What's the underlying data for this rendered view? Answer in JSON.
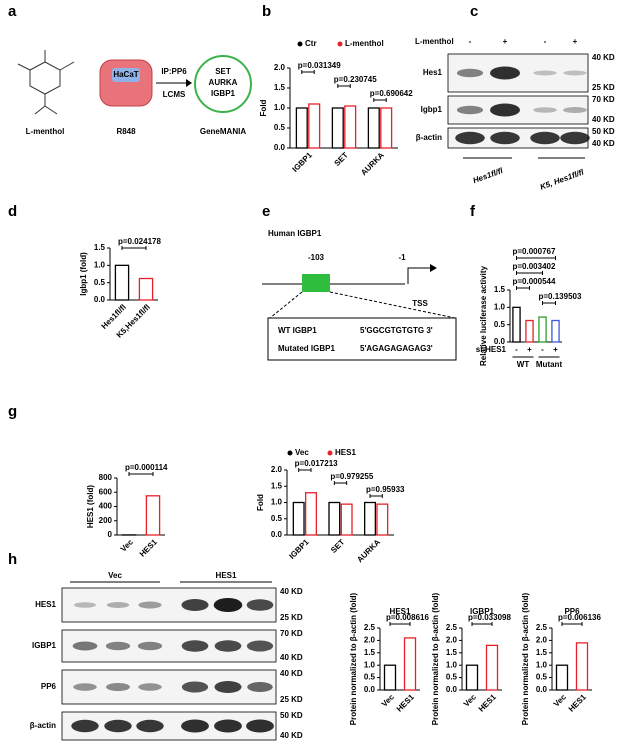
{
  "panel_labels": [
    "a",
    "b",
    "c",
    "d",
    "e",
    "f",
    "g",
    "h"
  ],
  "diagram_a": {
    "compound": "L-menthol",
    "cell": "HaCaT",
    "treatment": "R848",
    "method_1": "IP:PP6",
    "method_2": "LCMS",
    "hits": [
      "SET",
      "AURKA",
      "IGBP1"
    ],
    "tool": "GeneMANIA"
  },
  "blot_c": {
    "treatment_label": "L-menthol",
    "lanes": [
      "-",
      "+",
      "-",
      "+"
    ],
    "rows": [
      {
        "name": "Hes1",
        "markers": [
          "40 KD",
          "25 KD"
        ]
      },
      {
        "name": "Igbp1",
        "markers": [
          "70 KD",
          "40 KD"
        ]
      },
      {
        "name": "β-actin",
        "markers": [
          "50 KD",
          "40 KD"
        ]
      }
    ],
    "groups": [
      "Hes1fl/fl",
      "K5, Hes1fl/fl"
    ]
  },
  "promoter_e": {
    "title": "Human IGBP1",
    "position_1": "-103",
    "position_2": "-1",
    "tss": "TSS",
    "wt_label": "WT IGBP1",
    "wt_seq": "5'GGCGTGTGTG 3'",
    "mut_label": "Mutated IGBP1",
    "mut_seq": "5'AGAGAGAGAG3'"
  },
  "blot_h": {
    "groups": [
      "Vec",
      "HES1"
    ],
    "rows": [
      {
        "name": "HES1",
        "markers": [
          "40 KD",
          "25 KD"
        ]
      },
      {
        "name": "IGBP1",
        "markers": [
          "70 KD",
          "40 KD"
        ]
      },
      {
        "name": "PP6",
        "markers": [
          "40 KD",
          "25 KD"
        ]
      },
      {
        "name": "β-actin",
        "markers": [
          "50 KD",
          "40 KD"
        ]
      }
    ]
  },
  "chart_data": [
    {
      "type": "bar",
      "ylabel": "Fold",
      "ylim": [
        0,
        2
      ],
      "yticks": [
        {
          "value": 0,
          "label": "0.0"
        },
        {
          "value": 0.5,
          "label": "0.5"
        },
        {
          "value": 1,
          "label": "1.0"
        },
        {
          "value": 1.5,
          "label": "1.5"
        },
        {
          "value": 2,
          "label": "2.0"
        }
      ],
      "categories": [
        "IGBP1",
        "SET",
        "AURKA"
      ],
      "series": [
        {
          "name": "Ctr",
          "color": "#000000",
          "values": [
            1.0,
            1.0,
            1.0
          ]
        },
        {
          "name": "L-menthol",
          "color": "#e8202a",
          "values": [
            1.1,
            1.05,
            1.0
          ]
        }
      ],
      "annotations": [
        "p=0.031349",
        "p=0.230745",
        "p=0.690642"
      ]
    },
    {
      "type": "bar",
      "ylabel": "Igbp1 (fold)",
      "ylim": [
        0,
        1.5
      ],
      "yticks": [
        {
          "value": 0,
          "label": "0.0"
        },
        {
          "value": 0.5,
          "label": "0.5"
        },
        {
          "value": 1,
          "label": "1.0"
        },
        {
          "value": 1.5,
          "label": "1.5"
        }
      ],
      "categories": [
        "Hes1fl/fl",
        "K5,Hes1fl/fl"
      ],
      "values": [
        1.0,
        0.62
      ],
      "colors": [
        "#000000",
        "#e8202a"
      ],
      "annotations": [
        "p=0.024178"
      ]
    },
    {
      "type": "bar",
      "ylabel": "Relative luciferase activity",
      "ylim": [
        0,
        1.5
      ],
      "yticks": [
        {
          "value": 0,
          "label": "0.0"
        },
        {
          "value": 0.5,
          "label": "0.5"
        },
        {
          "value": 1,
          "label": "1.0"
        },
        {
          "value": 1.5,
          "label": "1.5"
        }
      ],
      "categories": [
        "-",
        "+",
        "-",
        "+"
      ],
      "values": [
        1.0,
        0.62,
        0.72,
        0.62
      ],
      "colors": [
        "#000000",
        "#e8202a",
        "#2ca02c",
        "#3b5bdb"
      ],
      "row_label": "si-HES1",
      "groups": [
        "WT",
        "Mutant"
      ],
      "annotations": [
        "p=0.000767",
        "p=0.003402",
        "p=0.000544",
        "p=0.139503"
      ]
    },
    {
      "type": "bar",
      "ylabel": "HES1 (fold)",
      "ylim": [
        0,
        800
      ],
      "yticks": [
        0,
        200,
        400,
        600,
        800
      ],
      "categories": [
        "Vec",
        "HES1"
      ],
      "values": [
        1,
        550
      ],
      "colors": [
        "#000000",
        "#e8202a"
      ],
      "annotations": [
        "p=0.000114"
      ]
    },
    {
      "type": "bar",
      "ylabel": "Fold",
      "ylim": [
        0,
        2
      ],
      "yticks": [
        {
          "value": 0,
          "label": "0.0"
        },
        {
          "value": 0.5,
          "label": "0.5"
        },
        {
          "value": 1,
          "label": "1.0"
        },
        {
          "value": 1.5,
          "label": "1.5"
        },
        {
          "value": 2,
          "label": "2.0"
        }
      ],
      "categories": [
        "IGBP1",
        "SET",
        "AURKA"
      ],
      "series": [
        {
          "name": "Vec",
          "color": "#000000",
          "values": [
            1.0,
            1.0,
            1.0
          ]
        },
        {
          "name": "HES1",
          "color": "#e8202a",
          "values": [
            1.3,
            0.95,
            0.95
          ]
        }
      ],
      "annotations": [
        "p=0.017213",
        "p=0.979255",
        "p=0.95933"
      ]
    },
    {
      "type": "bar",
      "title": "HES1",
      "ylabel": "Protein normalized to β-actin (fold)",
      "ylim": [
        0,
        2.5
      ],
      "yticks": [
        {
          "value": 0,
          "label": "0.0"
        },
        {
          "value": 0.5,
          "label": "0.5"
        },
        {
          "value": 1,
          "label": "1.0"
        },
        {
          "value": 1.5,
          "label": "1.5"
        },
        {
          "value": 2,
          "label": "2.0"
        },
        {
          "value": 2.5,
          "label": "2.5"
        }
      ],
      "categories": [
        "Vec",
        "HES1"
      ],
      "values": [
        1.0,
        2.1
      ],
      "colors": [
        "#000000",
        "#e8202a"
      ],
      "annotations": [
        "p=0.008616"
      ]
    },
    {
      "type": "bar",
      "title": "IGBP1",
      "ylabel": "Protein normalized to β-actin (fold)",
      "ylim": [
        0,
        2.5
      ],
      "yticks": [
        {
          "value": 0,
          "label": "0.0"
        },
        {
          "value": 0.5,
          "label": "0.5"
        },
        {
          "value": 1,
          "label": "1.0"
        },
        {
          "value": 1.5,
          "label": "1.5"
        },
        {
          "value": 2,
          "label": "2.0"
        },
        {
          "value": 2.5,
          "label": "2.5"
        }
      ],
      "categories": [
        "Vec",
        "HES1"
      ],
      "values": [
        1.0,
        1.8
      ],
      "colors": [
        "#000000",
        "#e8202a"
      ],
      "annotations": [
        "p=0.033098"
      ]
    },
    {
      "type": "bar",
      "title": "PP6",
      "ylabel": "Protein normalized to β-actin (fold)",
      "ylim": [
        0,
        2.5
      ],
      "yticks": [
        {
          "value": 0,
          "label": "0.0"
        },
        {
          "value": 0.5,
          "label": "0.5"
        },
        {
          "value": 1,
          "label": "1.0"
        },
        {
          "value": 1.5,
          "label": "1.5"
        },
        {
          "value": 2,
          "label": "2.0"
        },
        {
          "value": 2.5,
          "label": "2.5"
        }
      ],
      "categories": [
        "Vec",
        "HES1"
      ],
      "values": [
        1.0,
        1.9
      ],
      "colors": [
        "#000000",
        "#e8202a"
      ],
      "annotations": [
        "p=0.006136"
      ]
    }
  ]
}
